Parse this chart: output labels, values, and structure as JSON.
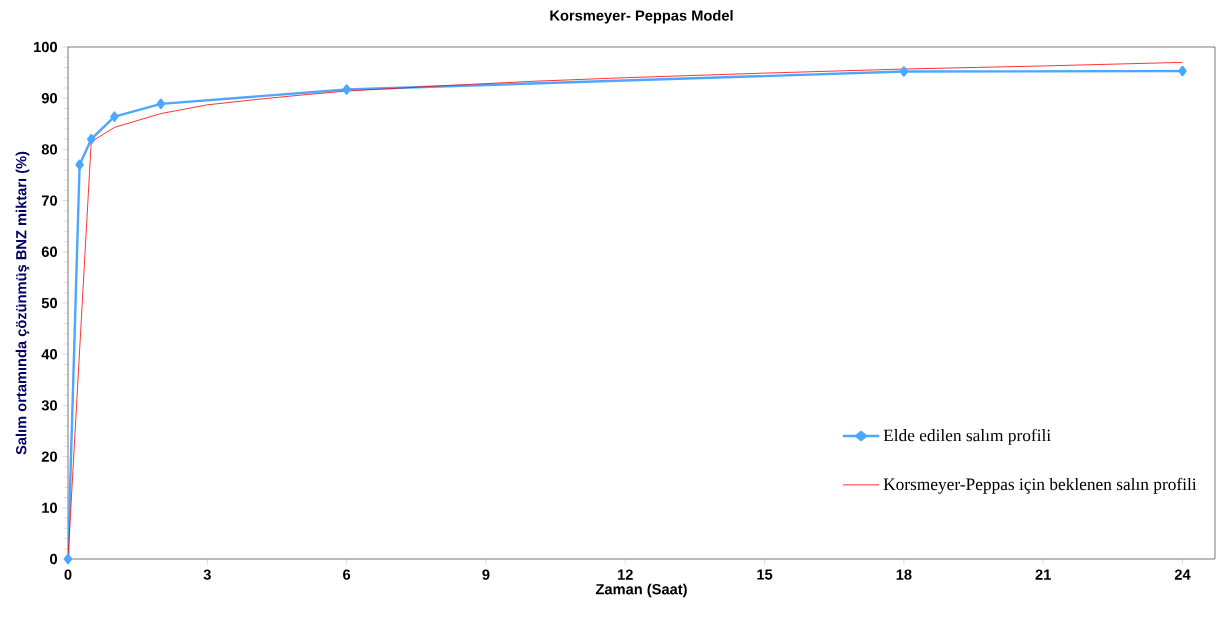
{
  "chart_data": {
    "type": "line",
    "title": "Korsmeyer- Peppas Model",
    "xlabel": "Zaman (Saat)",
    "ylabel": "Salım ortamında çözünmüş BNZ miktarı (%)",
    "xlim": [
      0,
      24.7
    ],
    "xticks": [
      0,
      3,
      6,
      9,
      12,
      15,
      18,
      21,
      24
    ],
    "ylim": [
      0,
      100
    ],
    "yticks": [
      0,
      10,
      20,
      30,
      40,
      50,
      60,
      70,
      80,
      90,
      100
    ],
    "grid": false,
    "legend": "bottom right",
    "series": [
      {
        "name": "Elde edilen salım profili",
        "color": "#4da6ff",
        "marker": "diamond",
        "x": [
          0,
          0.25,
          0.5,
          1,
          2,
          6,
          18,
          24
        ],
        "values": [
          0,
          77,
          82,
          86.4,
          88.9,
          91.7,
          95.2,
          95.3
        ]
      },
      {
        "name": "Korsmeyer-Peppas için beklenen salın profili",
        "color": "#ff0000",
        "marker": "none",
        "x": [
          0,
          0.5,
          1,
          2,
          3,
          4,
          5,
          6,
          8,
          10,
          12,
          15,
          18,
          21,
          24
        ],
        "values": [
          0,
          81.5,
          84.3,
          87,
          88.7,
          89.7,
          90.6,
          91.4,
          92.4,
          93.3,
          94,
          94.9,
          95.7,
          96.3,
          97
        ]
      }
    ]
  }
}
